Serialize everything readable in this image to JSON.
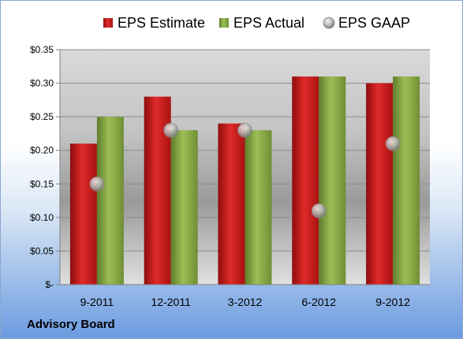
{
  "chart_data": {
    "type": "bar",
    "categories": [
      "9-2011",
      "12-2011",
      "3-2012",
      "6-2012",
      "9-2012"
    ],
    "series": [
      {
        "name": "EPS Estimate",
        "kind": "bar",
        "color": "#cc1a1a",
        "values": [
          0.21,
          0.28,
          0.24,
          0.31,
          0.3
        ]
      },
      {
        "name": "EPS Actual",
        "kind": "bar",
        "color": "#8fb04a",
        "values": [
          0.25,
          0.23,
          0.23,
          0.31,
          0.31
        ]
      },
      {
        "name": "EPS GAAP",
        "kind": "scatter",
        "color": "#b3b3b3",
        "values": [
          0.15,
          0.23,
          0.23,
          0.11,
          0.21
        ]
      }
    ],
    "ylim": [
      0,
      0.35
    ],
    "yticks": [
      0,
      0.05,
      0.1,
      0.15,
      0.2,
      0.25,
      0.3,
      0.35
    ],
    "ytick_labels": [
      "$-",
      "$0.05",
      "$0.10",
      "$0.15",
      "$0.20",
      "$0.25",
      "$0.30",
      "$0.35"
    ],
    "legend_position": "top",
    "grid": true
  },
  "footer": {
    "source": "Advisory Board"
  }
}
